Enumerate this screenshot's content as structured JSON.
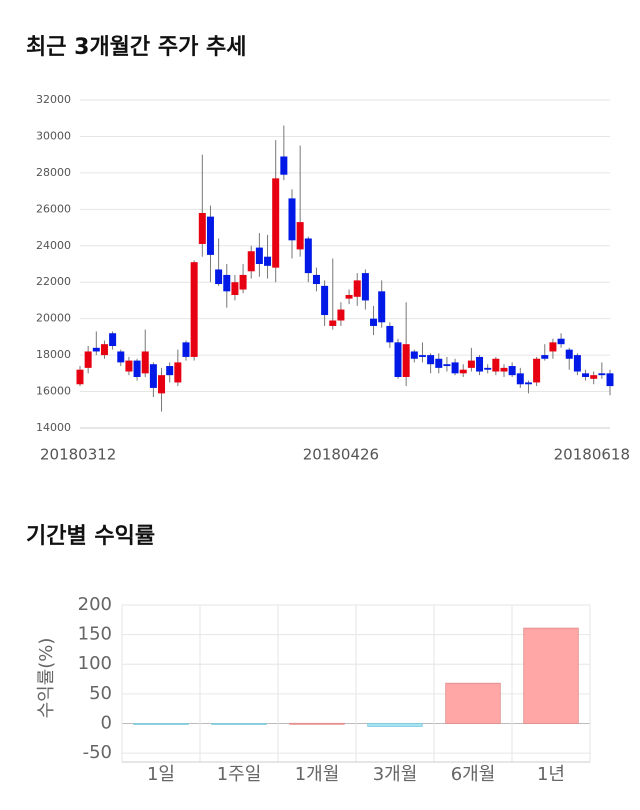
{
  "chart_data": [
    {
      "type": "candlestick",
      "title": "최근 3개월간 주가 추세",
      "categories": [
        "20180312",
        null,
        null,
        null,
        null,
        null,
        null,
        null,
        null,
        null,
        null,
        null,
        null,
        null,
        null,
        null,
        null,
        null,
        null,
        null,
        null,
        null,
        null,
        null,
        null,
        null,
        null,
        null,
        null,
        null,
        null,
        null,
        "20180426",
        null,
        null,
        null,
        null,
        null,
        null,
        null,
        null,
        null,
        null,
        null,
        null,
        null,
        null,
        null,
        null,
        null,
        null,
        null,
        null,
        null,
        null,
        null,
        null,
        null,
        null,
        null,
        null,
        null,
        null,
        null,
        null,
        "20180618"
      ],
      "open": [
        16400,
        17300,
        18400,
        18000,
        19200,
        18200,
        17100,
        17700,
        17000,
        17500,
        15900,
        17400,
        16500,
        18700,
        17900,
        24100,
        25600,
        22700,
        22400,
        21300,
        21600,
        22600,
        23900,
        23400,
        22800,
        28900,
        26600,
        23800,
        24400,
        22400,
        21800,
        19600,
        19900,
        21100,
        21200,
        22500,
        20000,
        21500,
        19600,
        18700,
        16800,
        18200,
        18000,
        18000,
        17800,
        17500,
        17600,
        17000,
        17300,
        17900,
        17300,
        17100,
        17100,
        17400,
        17000,
        16500,
        16500,
        18000,
        18200,
        18900,
        18300,
        18000,
        17000,
        16700,
        17000,
        17000
      ],
      "high": [
        17400,
        18500,
        19300,
        18800,
        19300,
        18300,
        17900,
        17800,
        19400,
        17600,
        17300,
        17600,
        18300,
        18800,
        23200,
        29000,
        26200,
        24400,
        23000,
        22400,
        23000,
        24000,
        24700,
        24600,
        29800,
        30600,
        27100,
        29500,
        24500,
        22800,
        22100,
        23300,
        20900,
        21600,
        22500,
        22700,
        20700,
        22100,
        19800,
        18900,
        20900,
        18300,
        18700,
        18100,
        18100,
        17900,
        17800,
        17500,
        18400,
        18000,
        17500,
        17900,
        17500,
        17600,
        17300,
        16600,
        17900,
        18600,
        18900,
        19200,
        18400,
        18100,
        17200,
        17100,
        17600,
        17200
      ],
      "low": [
        16300,
        17000,
        18000,
        17800,
        18300,
        17400,
        16900,
        16600,
        16800,
        15700,
        14900,
        16500,
        16300,
        17700,
        17700,
        23400,
        22000,
        21800,
        20600,
        21000,
        21400,
        22200,
        22300,
        22200,
        22000,
        27600,
        23300,
        23400,
        22000,
        21500,
        19600,
        19400,
        19600,
        20800,
        20700,
        20500,
        19100,
        19500,
        18400,
        16700,
        16300,
        17600,
        17600,
        17000,
        17000,
        17100,
        16900,
        16800,
        17100,
        16900,
        17000,
        16900,
        16800,
        16800,
        16200,
        15900,
        16300,
        17700,
        17800,
        18400,
        17200,
        16900,
        16600,
        16400,
        16700,
        15800
      ],
      "close": [
        17200,
        18200,
        18200,
        18600,
        18500,
        17600,
        17700,
        16800,
        18200,
        16200,
        16900,
        16900,
        17600,
        17900,
        23100,
        25800,
        23500,
        21900,
        21500,
        22000,
        22400,
        23700,
        23000,
        22900,
        27700,
        27900,
        24300,
        25300,
        22500,
        21900,
        20200,
        19900,
        20500,
        21300,
        22100,
        21000,
        19600,
        19800,
        18700,
        16800,
        18600,
        17800,
        17900,
        17500,
        17300,
        17400,
        17000,
        17200,
        17700,
        17100,
        17200,
        17800,
        17300,
        16900,
        16400,
        16400,
        17800,
        17800,
        18700,
        18600,
        17800,
        17100,
        16800,
        16900,
        16900,
        16300
      ],
      "up_color": "#e60012",
      "down_color": "#0019e6",
      "ylim": [
        14000,
        32000
      ],
      "yticks": [
        14000,
        16000,
        18000,
        20000,
        22000,
        24000,
        26000,
        28000,
        30000,
        32000
      ],
      "grid": true
    },
    {
      "type": "bar",
      "title": "기간별 수익률",
      "y_label": "수익률(%)",
      "categories": [
        "1일",
        "1주일",
        "1개월",
        "3개월",
        "6개월",
        "1년"
      ],
      "values": [
        -0.5,
        -1.5,
        0.3,
        -5,
        68,
        161
      ],
      "positive_color": "#ffa6a6",
      "negative_color": "#a6e3f2",
      "ylim": [
        -65,
        200
      ],
      "yticks": [
        -50,
        0,
        50,
        100,
        150,
        200
      ],
      "grid": true
    }
  ]
}
